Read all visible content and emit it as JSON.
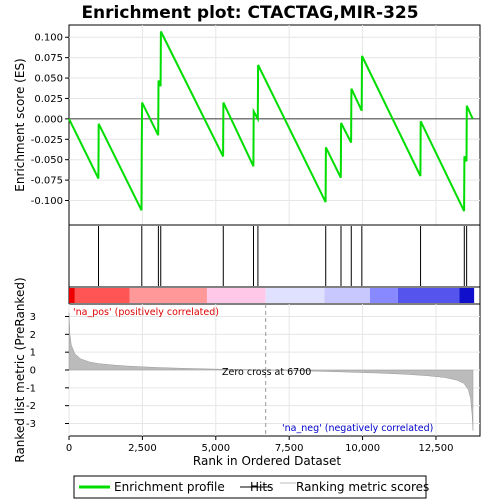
{
  "chart_data": {
    "type": "line",
    "title": "Enrichment plot: CTACTAG,MIR-325",
    "top_panel": {
      "ylabel": "Enrichment score (ES)",
      "ylim": [
        -0.13,
        0.115
      ],
      "yticks": [
        -0.1,
        -0.075,
        -0.05,
        -0.025,
        0.0,
        0.025,
        0.05,
        0.075,
        0.1
      ],
      "ytick_labels": [
        "-0.100",
        "-0.075",
        "-0.050",
        "-0.025",
        "0.000",
        "0.025",
        "0.050",
        "0.075",
        "0.100"
      ],
      "xlim": [
        0,
        14000
      ],
      "series_name": "Enrichment profile",
      "series_color": "#00dd00",
      "points": [
        [
          0,
          0.0
        ],
        [
          1000,
          -0.073
        ],
        [
          1010,
          -0.006
        ],
        [
          2470,
          -0.112
        ],
        [
          2475,
          -0.045
        ],
        [
          2490,
          0.02
        ],
        [
          3040,
          -0.02
        ],
        [
          3050,
          0.047
        ],
        [
          3120,
          0.04
        ],
        [
          3130,
          0.107
        ],
        [
          5250,
          -0.046
        ],
        [
          5260,
          0.02
        ],
        [
          6280,
          -0.058
        ],
        [
          6290,
          0.009
        ],
        [
          6430,
          0.0
        ],
        [
          6440,
          0.066
        ],
        [
          8740,
          -0.102
        ],
        [
          8750,
          -0.035
        ],
        [
          9260,
          -0.072
        ],
        [
          9270,
          -0.005
        ],
        [
          9610,
          -0.029
        ],
        [
          9620,
          0.037
        ],
        [
          9970,
          0.01
        ],
        [
          9980,
          0.077
        ],
        [
          11970,
          -0.07
        ],
        [
          11980,
          -0.003
        ],
        [
          13460,
          -0.113
        ],
        [
          13470,
          -0.046
        ],
        [
          13540,
          -0.052
        ],
        [
          13550,
          0.016
        ],
        [
          13750,
          0.0
        ]
      ]
    },
    "hits": [
      1005,
      2480,
      3045,
      3125,
      5255,
      6285,
      6435,
      8745,
      9265,
      9615,
      9975,
      11975,
      13465,
      13545
    ],
    "ranked_metric": {
      "ylabel": "Ranked list metric (PreRanked)",
      "ylim": [
        -3.7,
        3.7
      ],
      "yticks": [
        3,
        2,
        1,
        0,
        -1,
        -2,
        -3
      ],
      "ytick_labels": [
        "3",
        "2",
        "1",
        "0",
        "-1",
        "-2",
        "-3"
      ],
      "xlim": [
        0,
        14000
      ],
      "xticks": [
        0,
        2500,
        5000,
        7500,
        10000,
        12500
      ],
      "xtick_labels": [
        "0",
        "2,500",
        "5,000",
        "7,500",
        "10,000",
        "12,500"
      ],
      "xlabel": "Rank in Ordered Dataset",
      "fill_color": "#bbbbbb",
      "profile": [
        [
          0,
          3.2
        ],
        [
          30,
          2.0
        ],
        [
          80,
          1.4
        ],
        [
          200,
          0.9
        ],
        [
          400,
          0.62
        ],
        [
          700,
          0.45
        ],
        [
          1000,
          0.36
        ],
        [
          1500,
          0.28
        ],
        [
          2000,
          0.22
        ],
        [
          3000,
          0.14
        ],
        [
          4000,
          0.09
        ],
        [
          5000,
          0.05
        ],
        [
          6000,
          0.02
        ],
        [
          6700,
          0.0
        ],
        [
          7500,
          -0.03
        ],
        [
          8500,
          -0.07
        ],
        [
          9500,
          -0.12
        ],
        [
          10500,
          -0.17
        ],
        [
          11500,
          -0.24
        ],
        [
          12200,
          -0.32
        ],
        [
          12800,
          -0.42
        ],
        [
          13200,
          -0.56
        ],
        [
          13450,
          -0.75
        ],
        [
          13600,
          -1.1
        ],
        [
          13680,
          -1.6
        ],
        [
          13730,
          -2.5
        ],
        [
          13760,
          -3.4
        ]
      ],
      "zero_cross_rank": 6700
    },
    "heatmap_blocks": [
      {
        "start": 0,
        "end": 200,
        "color": "#ee0000"
      },
      {
        "start": 200,
        "end": 2070,
        "color": "#ff5555"
      },
      {
        "start": 2070,
        "end": 4700,
        "color": "#ff9999"
      },
      {
        "start": 4700,
        "end": 6700,
        "color": "#ffc8e8"
      },
      {
        "start": 6700,
        "end": 8700,
        "color": "#e0e0ff"
      },
      {
        "start": 8700,
        "end": 10250,
        "color": "#c8c8ff"
      },
      {
        "start": 10250,
        "end": 11200,
        "color": "#8888ff"
      },
      {
        "start": 11200,
        "end": 13300,
        "color": "#5555ee"
      },
      {
        "start": 13300,
        "end": 13800,
        "color": "#1010cc"
      }
    ],
    "annotations": {
      "pos_label": "'na_pos' (positively correlated)",
      "neg_label": "'na_neg' (negatively correlated)",
      "zero_cross": "Zero cross at 6700"
    },
    "legend": [
      {
        "label": "Enrichment profile",
        "color": "#00dd00"
      },
      {
        "label": "Hits",
        "color": "#000000"
      },
      {
        "label": "Ranking metric scores",
        "color": "#bbbbbb"
      }
    ]
  }
}
